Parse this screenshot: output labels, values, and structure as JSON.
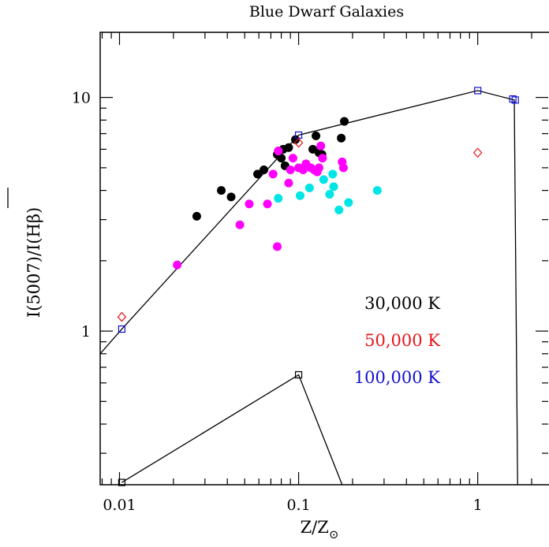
{
  "chart_data": {
    "type": "scatter",
    "title": "Blue Dwarf Galaxies",
    "xlabel": "Z/Z",
    "xlabel_sub": "⊙",
    "ylabel": "I(5007)/I(Hβ)",
    "x_scale": "log",
    "y_scale": "log",
    "xlim": [
      0.0078,
      2.5
    ],
    "ylim": [
      0.22,
      19
    ],
    "x_ticks": [
      {
        "value": 0.01,
        "label": "0.01"
      },
      {
        "value": 0.1,
        "label": "0.1"
      },
      {
        "value": 1,
        "label": "1"
      }
    ],
    "y_ticks": [
      {
        "value": 1,
        "label": "1"
      },
      {
        "value": 10,
        "label": "10"
      }
    ],
    "legend": {
      "placement": "lower-right",
      "entries": [
        {
          "label": "30,000 K",
          "color": "#000000"
        },
        {
          "label": "50,000 K",
          "color": "#e8141a"
        },
        {
          "label": "100,000 K",
          "color": "#1010d0"
        }
      ]
    },
    "lines": [
      {
        "name": "100,000 K model",
        "color": "#000000",
        "points": [
          [
            0.0078,
            0.8
          ],
          [
            0.0103,
            1.02
          ],
          [
            0.1,
            6.9
          ],
          [
            1.0,
            10.7
          ],
          [
            1.6,
            9.75
          ],
          [
            1.67,
            0.22
          ]
        ]
      },
      {
        "name": "30,000 K model",
        "color": "#000000",
        "points": [
          [
            0.0103,
            0.225
          ],
          [
            0.1,
            0.65
          ],
          [
            0.175,
            0.22
          ]
        ]
      }
    ],
    "model_markers": [
      {
        "name": "100,000 K",
        "shape": "square",
        "color": "#1010d0",
        "points": [
          [
            0.0103,
            1.02
          ],
          [
            0.1,
            6.9
          ],
          [
            1.0,
            10.7
          ],
          [
            1.57,
            9.85
          ],
          [
            1.62,
            9.75
          ]
        ]
      },
      {
        "name": "50,000 K",
        "shape": "diamond",
        "color": "#e8141a",
        "points": [
          [
            0.0103,
            1.15
          ],
          [
            0.1,
            6.4
          ],
          [
            1.0,
            5.8
          ]
        ]
      },
      {
        "name": "30,000 K",
        "shape": "square",
        "color": "#000000",
        "points": [
          [
            0.0103,
            0.225
          ],
          [
            0.1,
            0.65
          ]
        ]
      }
    ],
    "series": [
      {
        "name": "black",
        "color": "#000000",
        "points": [
          [
            0.027,
            3.1
          ],
          [
            0.037,
            4.0
          ],
          [
            0.042,
            3.75
          ],
          [
            0.059,
            4.7
          ],
          [
            0.064,
            4.9
          ],
          [
            0.076,
            5.7
          ],
          [
            0.08,
            5.5
          ],
          [
            0.082,
            6.0
          ],
          [
            0.084,
            5.1
          ],
          [
            0.088,
            6.1
          ],
          [
            0.096,
            6.6
          ],
          [
            0.12,
            6.0
          ],
          [
            0.125,
            6.85
          ],
          [
            0.13,
            5.8
          ],
          [
            0.135,
            5.7
          ],
          [
            0.173,
            6.7
          ],
          [
            0.18,
            7.9
          ]
        ]
      },
      {
        "name": "magenta",
        "color": "#ff00ff",
        "points": [
          [
            0.021,
            1.92
          ],
          [
            0.047,
            2.85
          ],
          [
            0.053,
            3.5
          ],
          [
            0.067,
            3.5
          ],
          [
            0.072,
            4.7
          ],
          [
            0.076,
            2.3
          ],
          [
            0.077,
            5.9
          ],
          [
            0.088,
            4.3
          ],
          [
            0.09,
            4.9
          ],
          [
            0.093,
            5.5
          ],
          [
            0.1,
            5.0
          ],
          [
            0.106,
            4.9
          ],
          [
            0.11,
            5.2
          ],
          [
            0.117,
            5.0
          ],
          [
            0.122,
            4.9
          ],
          [
            0.127,
            4.8
          ],
          [
            0.13,
            5.0
          ],
          [
            0.133,
            6.2
          ],
          [
            0.136,
            5.5
          ],
          [
            0.175,
            5.3
          ],
          [
            0.178,
            5.0
          ]
        ]
      },
      {
        "name": "cyan",
        "color": "#00e5e5",
        "points": [
          [
            0.077,
            3.7
          ],
          [
            0.102,
            3.8
          ],
          [
            0.115,
            4.1
          ],
          [
            0.138,
            4.45
          ],
          [
            0.149,
            3.85
          ],
          [
            0.155,
            4.7
          ],
          [
            0.157,
            4.15
          ],
          [
            0.168,
            3.3
          ],
          [
            0.19,
            3.55
          ],
          [
            0.275,
            4.0
          ]
        ]
      }
    ]
  }
}
